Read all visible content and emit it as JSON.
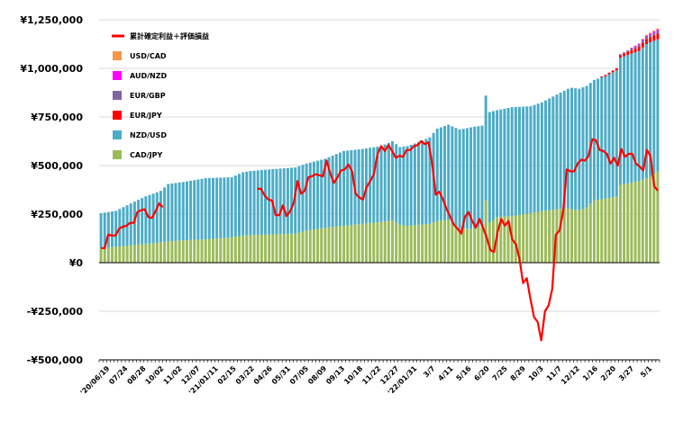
{
  "chart_data": {
    "type": "bar",
    "stacked": true,
    "ylim": [
      -500000,
      1250000
    ],
    "y_ticks": [
      {
        "value": 1250000,
        "label": "¥1,250,000"
      },
      {
        "value": 1000000,
        "label": "¥1,000,000"
      },
      {
        "value": 750000,
        "label": "¥750,000"
      },
      {
        "value": 500000,
        "label": "¥500,000"
      },
      {
        "value": 250000,
        "label": "¥250,000"
      },
      {
        "value": 0,
        "label": "¥0"
      },
      {
        "value": -250000,
        "label": "-¥250,000"
      },
      {
        "value": -500000,
        "label": "-¥500,000"
      }
    ],
    "x_tick_labels": [
      "'20/06/19",
      "07/24",
      "08/28",
      "10/02",
      "11/02",
      "12/07",
      "'21/01/11",
      "02/15",
      "03/22",
      "04/26",
      "05/31",
      "07/05",
      "08/09",
      "09/13",
      "10/18",
      "11/22",
      "12/27",
      "'22/01/31",
      "3/7",
      "4/11",
      "5/16",
      "6/20",
      "7/25",
      "8/29",
      "10/3",
      "11/7",
      "12/12",
      "1/16",
      "2/20",
      "3/27",
      "5/1"
    ],
    "legend": [
      {
        "label": "累計確定利益＋評価損益",
        "color": "#ff0000",
        "kind": "line"
      },
      {
        "label": "USD/CAD",
        "color": "#f79646",
        "kind": "bar"
      },
      {
        "label": "AUD/NZD",
        "color": "#ff00ff",
        "kind": "bar"
      },
      {
        "label": "EUR/GBP",
        "color": "#8064a2",
        "kind": "bar"
      },
      {
        "label": "EUR/JPY",
        "color": "#ff0000",
        "kind": "bar"
      },
      {
        "label": "NZD/USD",
        "color": "#4bacc6",
        "kind": "bar"
      },
      {
        "label": "CAD/JPY",
        "color": "#9bbb59",
        "kind": "bar"
      }
    ],
    "num_weeks": 150,
    "series": [
      {
        "name": "CAD/JPY",
        "color": "#9bbb59",
        "knots": [
          [
            0,
            75000
          ],
          [
            3,
            80000
          ],
          [
            8,
            90000
          ],
          [
            14,
            100000
          ],
          [
            18,
            110000
          ],
          [
            22,
            115000
          ],
          [
            28,
            120000
          ],
          [
            35,
            130000
          ],
          [
            38,
            140000
          ],
          [
            45,
            145000
          ],
          [
            52,
            150000
          ],
          [
            55,
            165000
          ],
          [
            60,
            180000
          ],
          [
            65,
            190000
          ],
          [
            70,
            200000
          ],
          [
            75,
            210000
          ],
          [
            78,
            220000
          ],
          [
            80,
            195000
          ],
          [
            82,
            190000
          ],
          [
            88,
            200000
          ],
          [
            90,
            215000
          ],
          [
            93,
            220000
          ],
          [
            96,
            175000
          ],
          [
            100,
            175000
          ],
          [
            102,
            195000
          ],
          [
            103,
            320000
          ],
          [
            104,
            205000
          ],
          [
            106,
            235000
          ],
          [
            110,
            240000
          ],
          [
            115,
            255000
          ],
          [
            118,
            265000
          ],
          [
            122,
            275000
          ],
          [
            125,
            280000
          ],
          [
            126,
            275000
          ],
          [
            128,
            270000
          ],
          [
            130,
            285000
          ],
          [
            132,
            320000
          ],
          [
            135,
            330000
          ],
          [
            138,
            340000
          ],
          [
            139,
            400000
          ],
          [
            144,
            420000
          ],
          [
            146,
            435000
          ],
          [
            149,
            470000
          ]
        ]
      },
      {
        "name": "NZD/USD",
        "color": "#4bacc6",
        "knots": [
          [
            0,
            180000
          ],
          [
            4,
            185000
          ],
          [
            8,
            215000
          ],
          [
            12,
            245000
          ],
          [
            16,
            265000
          ],
          [
            18,
            295000
          ],
          [
            22,
            300000
          ],
          [
            28,
            315000
          ],
          [
            35,
            310000
          ],
          [
            38,
            325000
          ],
          [
            40,
            330000
          ],
          [
            45,
            335000
          ],
          [
            52,
            340000
          ],
          [
            55,
            345000
          ],
          [
            60,
            355000
          ],
          [
            65,
            385000
          ],
          [
            70,
            385000
          ],
          [
            75,
            390000
          ],
          [
            78,
            405000
          ],
          [
            80,
            400000
          ],
          [
            84,
            420000
          ],
          [
            88,
            445000
          ],
          [
            90,
            475000
          ],
          [
            93,
            490000
          ],
          [
            96,
            510000
          ],
          [
            100,
            525000
          ],
          [
            102,
            510000
          ],
          [
            103,
            540000
          ],
          [
            104,
            570000
          ],
          [
            106,
            550000
          ],
          [
            110,
            560000
          ],
          [
            115,
            550000
          ],
          [
            118,
            560000
          ],
          [
            122,
            590000
          ],
          [
            125,
            615000
          ],
          [
            126,
            625000
          ],
          [
            128,
            625000
          ],
          [
            130,
            625000
          ],
          [
            132,
            620000
          ],
          [
            135,
            630000
          ],
          [
            138,
            650000
          ],
          [
            139,
            655000
          ],
          [
            144,
            670000
          ],
          [
            146,
            690000
          ],
          [
            149,
            680000
          ]
        ]
      },
      {
        "name": "EUR/JPY",
        "color": "#ff0000",
        "knots": [
          [
            0,
            0
          ],
          [
            133,
            0
          ],
          [
            134,
            5000
          ],
          [
            136,
            8000
          ],
          [
            139,
            12000
          ],
          [
            142,
            18000
          ],
          [
            145,
            25000
          ],
          [
            149,
            30000
          ]
        ]
      },
      {
        "name": "EUR/GBP",
        "color": "#8064a2",
        "knots": [
          [
            0,
            0
          ],
          [
            138,
            0
          ],
          [
            139,
            6000
          ],
          [
            142,
            8000
          ],
          [
            145,
            10000
          ],
          [
            149,
            12000
          ]
        ]
      },
      {
        "name": "AUD/NZD",
        "color": "#ff00ff",
        "knots": [
          [
            0,
            0
          ],
          [
            141,
            0
          ],
          [
            142,
            4000
          ],
          [
            145,
            6000
          ],
          [
            149,
            8000
          ]
        ]
      },
      {
        "name": "USD/CAD",
        "color": "#f79646",
        "knots": [
          [
            0,
            0
          ],
          [
            144,
            0
          ],
          [
            145,
            4000
          ],
          [
            149,
            6000
          ]
        ]
      }
    ],
    "line": {
      "name": "累計確定利益＋評価損益",
      "color": "#ff0000",
      "segments": [
        [
          [
            0,
            75000
          ],
          [
            1,
            75000
          ],
          [
            2,
            145000
          ],
          [
            3,
            140000
          ],
          [
            4,
            140000
          ],
          [
            5,
            175000
          ],
          [
            6,
            185000
          ],
          [
            7,
            190000
          ],
          [
            8,
            205000
          ],
          [
            9,
            205000
          ],
          [
            10,
            260000
          ],
          [
            11,
            270000
          ],
          [
            12,
            275000
          ],
          [
            13,
            235000
          ],
          [
            14,
            230000
          ],
          [
            15,
            265000
          ],
          [
            16,
            305000
          ],
          [
            17,
            285000
          ]
        ],
        [
          [
            43,
            380000
          ],
          [
            44,
            380000
          ],
          [
            45,
            345000
          ],
          [
            46,
            325000
          ],
          [
            47,
            320000
          ],
          [
            48,
            245000
          ],
          [
            49,
            245000
          ],
          [
            50,
            295000
          ],
          [
            51,
            240000
          ],
          [
            52,
            265000
          ],
          [
            53,
            310000
          ],
          [
            54,
            420000
          ],
          [
            55,
            355000
          ],
          [
            56,
            370000
          ],
          [
            57,
            440000
          ],
          [
            58,
            445000
          ],
          [
            59,
            455000
          ],
          [
            60,
            450000
          ],
          [
            61,
            445000
          ],
          [
            62,
            525000
          ],
          [
            63,
            460000
          ],
          [
            64,
            410000
          ],
          [
            65,
            440000
          ],
          [
            66,
            475000
          ],
          [
            67,
            480000
          ],
          [
            68,
            505000
          ],
          [
            69,
            470000
          ],
          [
            70,
            355000
          ],
          [
            71,
            335000
          ],
          [
            72,
            325000
          ],
          [
            73,
            390000
          ],
          [
            74,
            420000
          ],
          [
            75,
            455000
          ],
          [
            76,
            560000
          ],
          [
            77,
            600000
          ],
          [
            78,
            575000
          ],
          [
            79,
            605000
          ],
          [
            80,
            575000
          ],
          [
            81,
            540000
          ],
          [
            82,
            550000
          ],
          [
            83,
            545000
          ],
          [
            84,
            580000
          ],
          [
            85,
            580000
          ],
          [
            86,
            600000
          ],
          [
            87,
            605000
          ],
          [
            88,
            625000
          ],
          [
            89,
            610000
          ],
          [
            90,
            620000
          ],
          [
            91,
            510000
          ],
          [
            92,
            350000
          ],
          [
            93,
            365000
          ],
          [
            94,
            325000
          ],
          [
            95,
            275000
          ],
          [
            96,
            235000
          ],
          [
            97,
            195000
          ],
          [
            98,
            175000
          ],
          [
            99,
            150000
          ],
          [
            100,
            235000
          ],
          [
            101,
            260000
          ],
          [
            102,
            215000
          ],
          [
            103,
            180000
          ],
          [
            104,
            225000
          ],
          [
            105,
            180000
          ],
          [
            106,
            130000
          ],
          [
            107,
            65000
          ],
          [
            108,
            55000
          ],
          [
            109,
            160000
          ],
          [
            110,
            225000
          ],
          [
            111,
            190000
          ],
          [
            112,
            215000
          ],
          [
            113,
            120000
          ],
          [
            114,
            95000
          ],
          [
            115,
            20000
          ],
          [
            116,
            -105000
          ],
          [
            117,
            -80000
          ],
          [
            118,
            -185000
          ],
          [
            119,
            -280000
          ],
          [
            120,
            -305000
          ],
          [
            121,
            -400000
          ],
          [
            122,
            -250000
          ],
          [
            123,
            -220000
          ],
          [
            124,
            -135000
          ],
          [
            125,
            145000
          ],
          [
            126,
            165000
          ],
          [
            127,
            265000
          ],
          [
            128,
            480000
          ],
          [
            129,
            470000
          ],
          [
            130,
            470000
          ],
          [
            131,
            510000
          ],
          [
            132,
            530000
          ],
          [
            133,
            525000
          ],
          [
            134,
            550000
          ],
          [
            135,
            635000
          ],
          [
            136,
            630000
          ],
          [
            137,
            580000
          ],
          [
            138,
            575000
          ],
          [
            139,
            560000
          ],
          [
            140,
            510000
          ],
          [
            141,
            540000
          ],
          [
            142,
            500000
          ],
          [
            143,
            585000
          ],
          [
            144,
            545000
          ],
          [
            145,
            560000
          ],
          [
            146,
            560000
          ],
          [
            147,
            510000
          ],
          [
            148,
            495000
          ],
          [
            149,
            475000
          ],
          [
            150,
            580000
          ],
          [
            151,
            550000
          ],
          [
            152,
            395000
          ],
          [
            153,
            370000
          ]
        ]
      ]
    }
  }
}
